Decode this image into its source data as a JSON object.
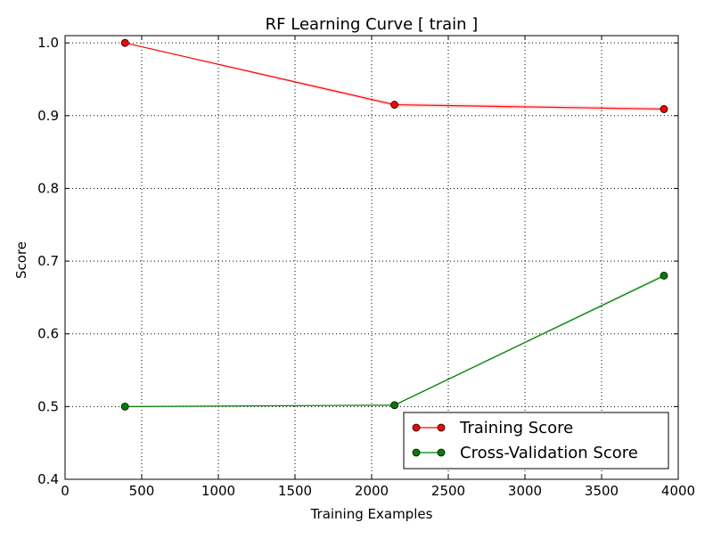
{
  "chart_data": {
    "type": "line",
    "title": "RF Learning Curve [ train ]",
    "xlabel": "Training Examples",
    "ylabel": "Score",
    "xlim": [
      0,
      4000
    ],
    "ylim": [
      0.4,
      1.01
    ],
    "xticks": [
      0,
      500,
      1000,
      1500,
      2000,
      2500,
      3000,
      3500,
      4000
    ],
    "xtick_labels": [
      "0",
      "500",
      "1000",
      "1500",
      "2000",
      "2500",
      "3000",
      "3500",
      "4000"
    ],
    "yticks": [
      0.4,
      0.5,
      0.6,
      0.7,
      0.8,
      0.9,
      1.0
    ],
    "ytick_labels": [
      "0.4",
      "0.5",
      "0.6",
      "0.7",
      "0.8",
      "0.9",
      "1.0"
    ],
    "grid": true,
    "legend_position": "lower-right",
    "x": [
      391,
      2149,
      3907
    ],
    "series": [
      {
        "name": "Training Score",
        "color": "#ff0000",
        "values": [
          1.0,
          0.915,
          0.909
        ],
        "band": [
          0.0,
          0.003,
          0.003
        ]
      },
      {
        "name": "Cross-Validation Score",
        "color": "#008000",
        "values": [
          0.5,
          0.502,
          0.68
        ],
        "band": [
          0.0,
          0.001,
          0.003
        ]
      }
    ]
  }
}
